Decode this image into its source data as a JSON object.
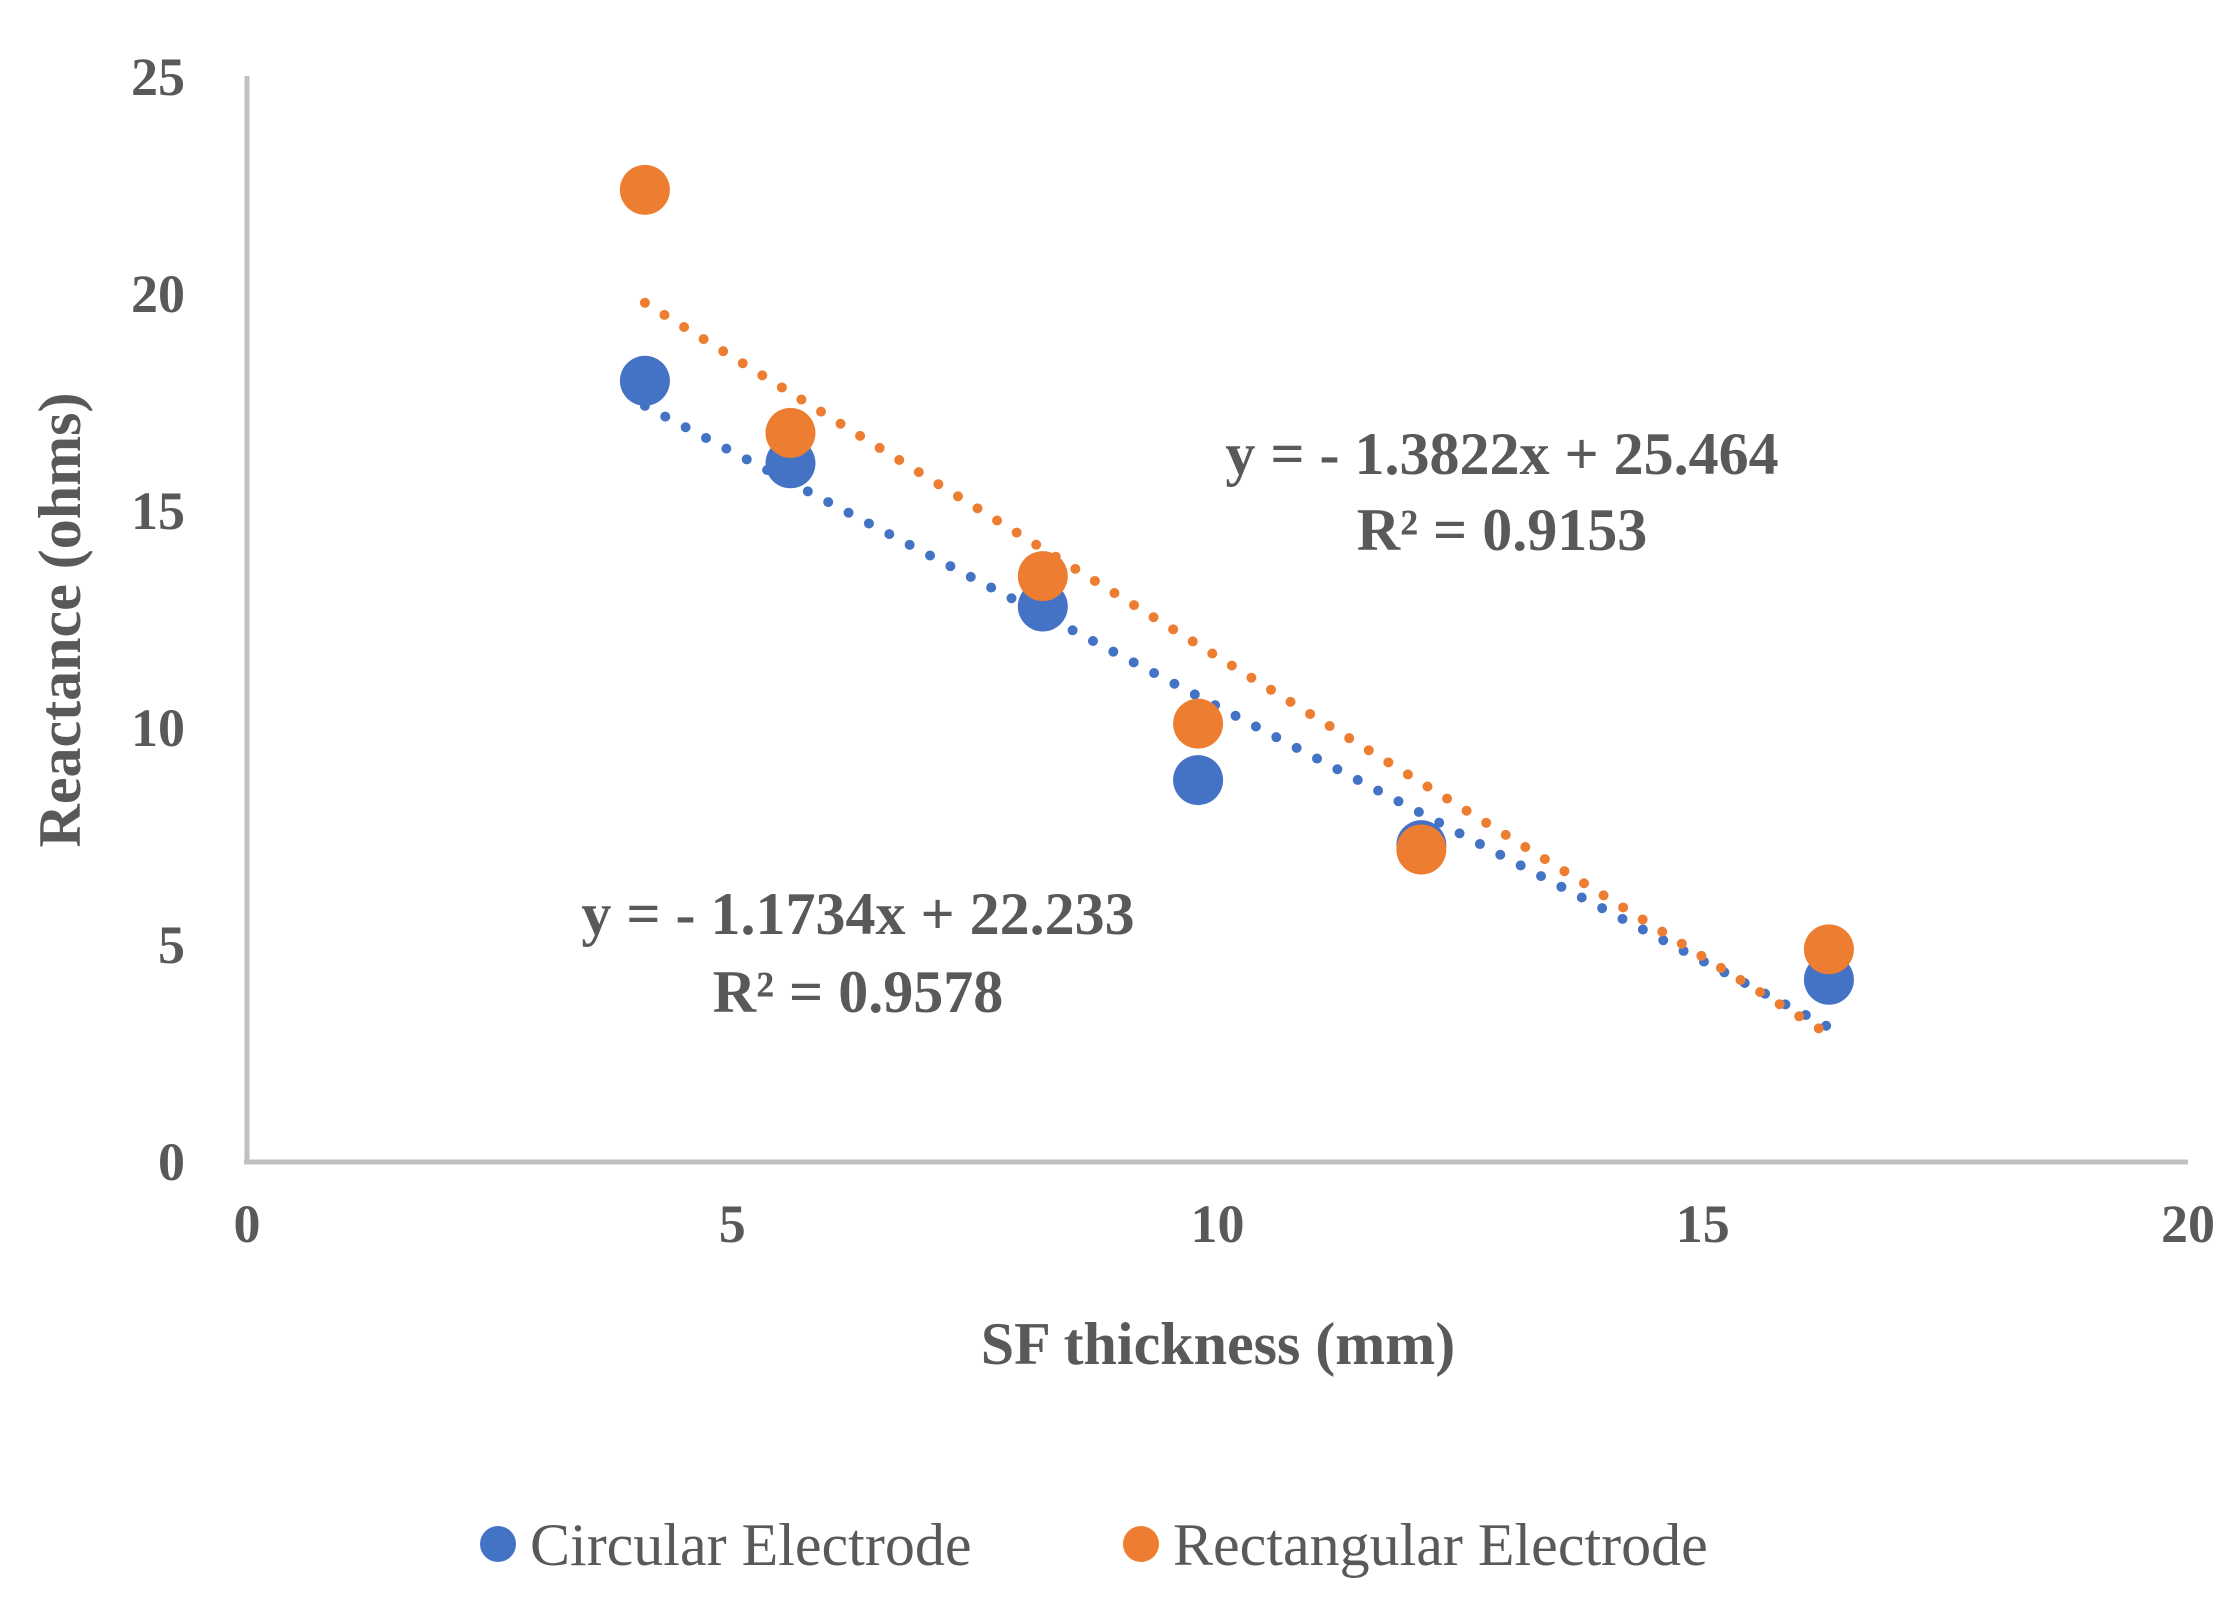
{
  "chart_data": {
    "type": "scatter",
    "title": "",
    "xlabel": "SF thickness (mm)",
    "ylabel": "Reactance (ohms)",
    "xlim": [
      0,
      20
    ],
    "ylim": [
      0,
      25
    ],
    "xticks": [
      0,
      5,
      10,
      15,
      20
    ],
    "yticks": [
      0,
      5,
      10,
      15,
      20,
      25
    ],
    "grid": false,
    "legend_position": "bottom",
    "series": [
      {
        "name": "Circular Electrode",
        "color": "#4472C4",
        "points": [
          {
            "x": 4.1,
            "y": 18.0
          },
          {
            "x": 5.6,
            "y": 16.1
          },
          {
            "x": 8.2,
            "y": 12.8
          },
          {
            "x": 9.8,
            "y": 8.8
          },
          {
            "x": 12.1,
            "y": 7.3
          },
          {
            "x": 16.3,
            "y": 4.2
          }
        ],
        "trendline": {
          "slope": -1.1734,
          "intercept": 22.233,
          "x_range": [
            4.1,
            16.3
          ]
        },
        "equation": "y = - 1.1734x + 22.233",
        "r2": "R² = 0.9578"
      },
      {
        "name": "Rectangular Electrode",
        "color": "#ED7D31",
        "points": [
          {
            "x": 4.1,
            "y": 22.4
          },
          {
            "x": 5.6,
            "y": 16.8
          },
          {
            "x": 8.2,
            "y": 13.5
          },
          {
            "x": 9.8,
            "y": 10.1
          },
          {
            "x": 12.1,
            "y": 7.2
          },
          {
            "x": 16.3,
            "y": 4.9
          }
        ],
        "trendline": {
          "slope": -1.3822,
          "intercept": 25.464,
          "x_range": [
            4.1,
            16.3
          ]
        },
        "equation": "y = - 1.3822x + 25.464",
        "r2": "R² = 0.9153"
      }
    ]
  }
}
